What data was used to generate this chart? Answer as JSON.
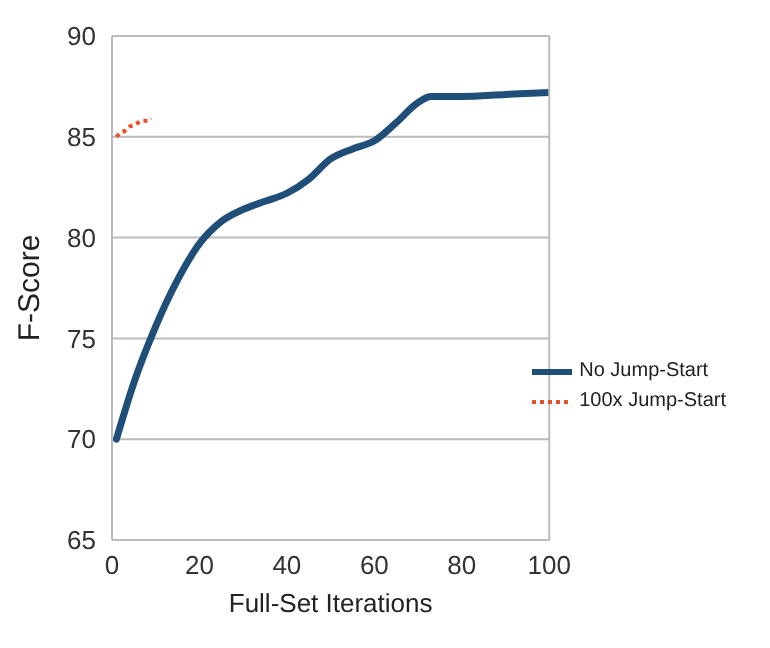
{
  "chart_data": {
    "type": "line",
    "xlabel": "Full-Set Iterations",
    "ylabel": "F-Score",
    "xlim": [
      0,
      100
    ],
    "xticks": [
      0,
      20,
      40,
      60,
      80,
      100
    ],
    "ylim": [
      65,
      90
    ],
    "yticks": [
      65,
      70,
      75,
      80,
      85,
      90
    ],
    "grid": "y",
    "legend": "right",
    "marker": "none",
    "series": [
      {
        "name": "No Jump-Start",
        "color": "#1f4e79",
        "line_style": "solid",
        "x": [
          1,
          5,
          10,
          15,
          20,
          25,
          30,
          35,
          40,
          45,
          50,
          55,
          60,
          65,
          70,
          73,
          80,
          90,
          100
        ],
        "values": [
          70,
          72.8,
          75.6,
          77.9,
          79.7,
          80.8,
          81.4,
          81.8,
          82.2,
          82.9,
          83.9,
          84.4,
          84.8,
          85.7,
          86.7,
          87,
          87,
          87.1,
          87.2
        ]
      },
      {
        "name": "100x Jump-Start",
        "color": "#e8502a",
        "line_style": "dotted",
        "x": [
          1,
          2,
          3,
          4,
          5,
          6,
          7,
          8,
          9
        ],
        "values": [
          85,
          85.2,
          85.3,
          85.5,
          85.6,
          85.7,
          85.8,
          85.8,
          85.9
        ]
      }
    ]
  }
}
